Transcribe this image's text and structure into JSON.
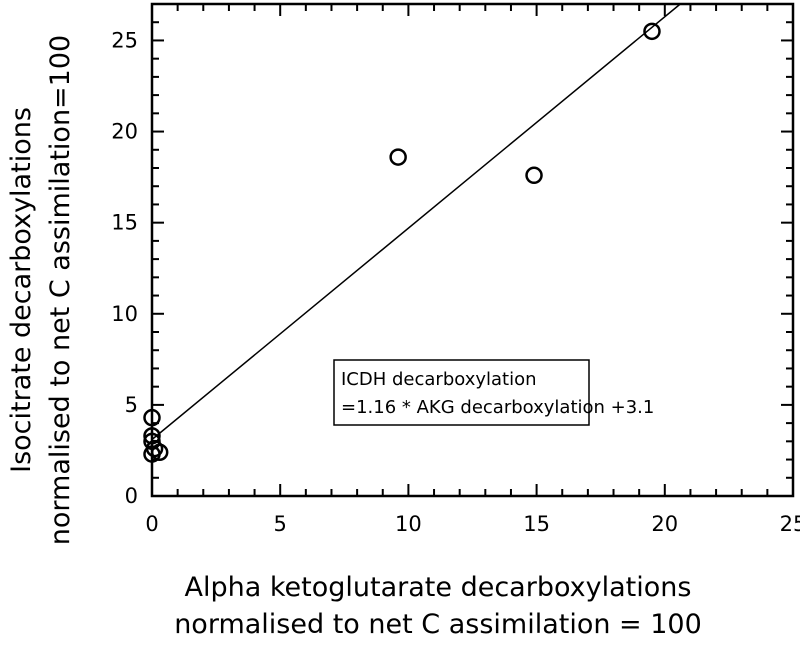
{
  "chart_data": {
    "type": "scatter",
    "xlabel": [
      "Alpha ketoglutarate decarboxylations",
      "normalised to net C assimilation = 100"
    ],
    "ylabel": [
      "Isocitrate decarboxylations",
      "normalised to net C assimilation=100"
    ],
    "xlim": [
      0,
      25
    ],
    "ylim": [
      0,
      27
    ],
    "xticks": [
      0,
      5,
      10,
      15,
      20,
      25
    ],
    "yticks": [
      0,
      5,
      10,
      15,
      20,
      25
    ],
    "grid": false,
    "points": [
      {
        "x": 0.0,
        "y": 2.3
      },
      {
        "x": 0.1,
        "y": 2.6
      },
      {
        "x": 0.3,
        "y": 2.4
      },
      {
        "x": 0.0,
        "y": 3.0
      },
      {
        "x": 0.0,
        "y": 3.3
      },
      {
        "x": 0.0,
        "y": 4.3
      },
      {
        "x": 9.6,
        "y": 18.6
      },
      {
        "x": 14.9,
        "y": 17.6
      },
      {
        "x": 19.5,
        "y": 25.5
      }
    ],
    "fit": {
      "slope": 1.16,
      "intercept": 3.1
    },
    "annotation": [
      "ICDH decarboxylation",
      "=1.16 * AKG decarboxylation +3.1"
    ]
  }
}
